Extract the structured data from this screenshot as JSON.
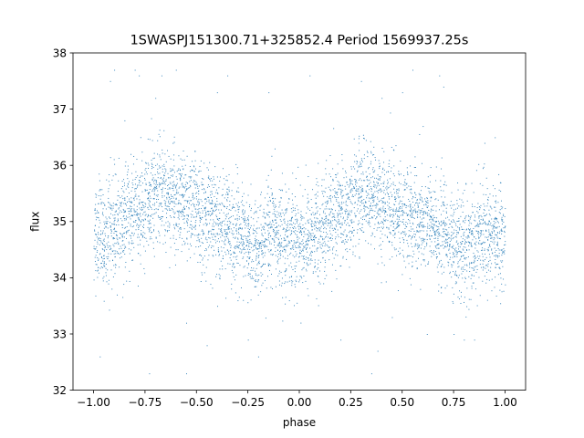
{
  "chart_data": {
    "type": "scatter",
    "title": "1SWASPJ151300.71+325852.4 Period 1569937.25s",
    "xlabel": "phase",
    "ylabel": "flux",
    "xlim": [
      -1.1,
      1.1
    ],
    "ylim": [
      32,
      38
    ],
    "grid": false,
    "legend": "none",
    "marker_color": "#1f77b4",
    "x_ticks": [
      -1.0,
      -0.75,
      -0.5,
      -0.25,
      0.0,
      0.25,
      0.5,
      0.75,
      1.0
    ],
    "x_tick_labels": [
      "−1.00",
      "−0.75",
      "−0.50",
      "−0.25",
      "0.00",
      "0.25",
      "0.50",
      "0.75",
      "1.00"
    ],
    "y_ticks": [
      32,
      33,
      34,
      35,
      36,
      37,
      38
    ],
    "y_tick_labels": [
      "32",
      "33",
      "34",
      "35",
      "36",
      "37",
      "38"
    ],
    "x_range_of_points": [
      -1.0,
      1.0
    ],
    "series": [
      {
        "points": [
          [
            -1.0,
            34.7
          ],
          [
            -0.975,
            34.9
          ],
          [
            -0.95,
            34.6
          ],
          [
            -0.925,
            35.0
          ],
          [
            -0.9,
            34.8
          ],
          [
            -0.875,
            34.9
          ],
          [
            -0.85,
            35.0
          ],
          [
            -0.825,
            35.1
          ],
          [
            -0.8,
            35.2
          ],
          [
            -0.775,
            35.1
          ],
          [
            -0.75,
            35.3
          ],
          [
            -0.725,
            35.4
          ],
          [
            -0.7,
            35.5
          ],
          [
            -0.675,
            35.6
          ],
          [
            -0.65,
            35.4
          ],
          [
            -0.625,
            35.5
          ],
          [
            -0.6,
            35.4
          ],
          [
            -0.575,
            35.3
          ],
          [
            -0.55,
            35.2
          ],
          [
            -0.525,
            35.3
          ],
          [
            -0.5,
            35.2
          ],
          [
            -0.475,
            35.1
          ],
          [
            -0.45,
            35.0
          ],
          [
            -0.425,
            35.1
          ],
          [
            -0.4,
            35.0
          ],
          [
            -0.375,
            34.9
          ],
          [
            -0.35,
            35.0
          ],
          [
            -0.325,
            34.8
          ],
          [
            -0.3,
            34.8
          ],
          [
            -0.275,
            34.7
          ],
          [
            -0.25,
            34.6
          ],
          [
            -0.225,
            34.5
          ],
          [
            -0.2,
            34.5
          ],
          [
            -0.175,
            34.6
          ],
          [
            -0.15,
            34.7
          ],
          [
            -0.125,
            34.8
          ],
          [
            -0.1,
            34.8
          ],
          [
            -0.075,
            34.7
          ],
          [
            -0.05,
            34.8
          ],
          [
            -0.025,
            34.7
          ],
          [
            0.0,
            34.7
          ],
          [
            0.025,
            34.8
          ],
          [
            0.05,
            34.7
          ],
          [
            0.075,
            34.8
          ],
          [
            0.1,
            34.9
          ],
          [
            0.125,
            35.0
          ],
          [
            0.15,
            35.0
          ],
          [
            0.175,
            35.1
          ],
          [
            0.2,
            35.2
          ],
          [
            0.225,
            35.1
          ],
          [
            0.25,
            35.3
          ],
          [
            0.275,
            35.4
          ],
          [
            0.3,
            35.5
          ],
          [
            0.325,
            35.5
          ],
          [
            0.35,
            35.4
          ],
          [
            0.375,
            35.4
          ],
          [
            0.4,
            35.3
          ],
          [
            0.425,
            35.3
          ],
          [
            0.45,
            35.2
          ],
          [
            0.475,
            35.2
          ],
          [
            0.5,
            35.1
          ],
          [
            0.525,
            35.1
          ],
          [
            0.55,
            35.0
          ],
          [
            0.575,
            35.1
          ],
          [
            0.6,
            35.0
          ],
          [
            0.625,
            34.9
          ],
          [
            0.65,
            35.0
          ],
          [
            0.675,
            34.8
          ],
          [
            0.7,
            34.8
          ],
          [
            0.725,
            34.7
          ],
          [
            0.75,
            34.6
          ],
          [
            0.775,
            34.5
          ],
          [
            0.8,
            34.5
          ],
          [
            0.825,
            34.6
          ],
          [
            0.85,
            34.7
          ],
          [
            0.875,
            34.8
          ],
          [
            0.9,
            34.8
          ],
          [
            0.925,
            34.7
          ],
          [
            0.95,
            34.8
          ],
          [
            0.975,
            34.7
          ],
          [
            1.0,
            34.7
          ]
        ],
        "scatter_sigma": 0.45,
        "outliers": [
          [
            -0.92,
            37.5
          ],
          [
            -0.9,
            37.7
          ],
          [
            -0.85,
            36.8
          ],
          [
            -0.8,
            37.7
          ],
          [
            -0.78,
            37.6
          ],
          [
            -0.7,
            37.2
          ],
          [
            -0.67,
            37.6
          ],
          [
            -0.6,
            37.7
          ],
          [
            -0.55,
            33.2
          ],
          [
            -0.55,
            32.3
          ],
          [
            -0.45,
            32.8
          ],
          [
            -0.4,
            37.3
          ],
          [
            -0.35,
            37.6
          ],
          [
            -0.3,
            33.6
          ],
          [
            -0.25,
            32.9
          ],
          [
            -0.2,
            32.6
          ],
          [
            -0.15,
            37.3
          ],
          [
            -0.12,
            36.3
          ],
          [
            -0.05,
            33.6
          ],
          [
            0.05,
            37.6
          ],
          [
            0.1,
            33.9
          ],
          [
            0.2,
            32.9
          ],
          [
            0.3,
            37.5
          ],
          [
            0.35,
            32.3
          ],
          [
            0.38,
            32.7
          ],
          [
            0.4,
            37.2
          ],
          [
            0.45,
            33.3
          ],
          [
            0.5,
            37.3
          ],
          [
            0.55,
            37.7
          ],
          [
            0.6,
            36.7
          ],
          [
            0.62,
            33.0
          ],
          [
            0.68,
            37.6
          ],
          [
            0.7,
            37.4
          ],
          [
            0.75,
            33.0
          ],
          [
            0.8,
            32.9
          ],
          [
            0.85,
            32.9
          ],
          [
            -0.97,
            32.6
          ],
          [
            -0.73,
            32.3
          ],
          [
            0.9,
            36.4
          ],
          [
            0.95,
            36.5
          ]
        ]
      }
    ]
  }
}
